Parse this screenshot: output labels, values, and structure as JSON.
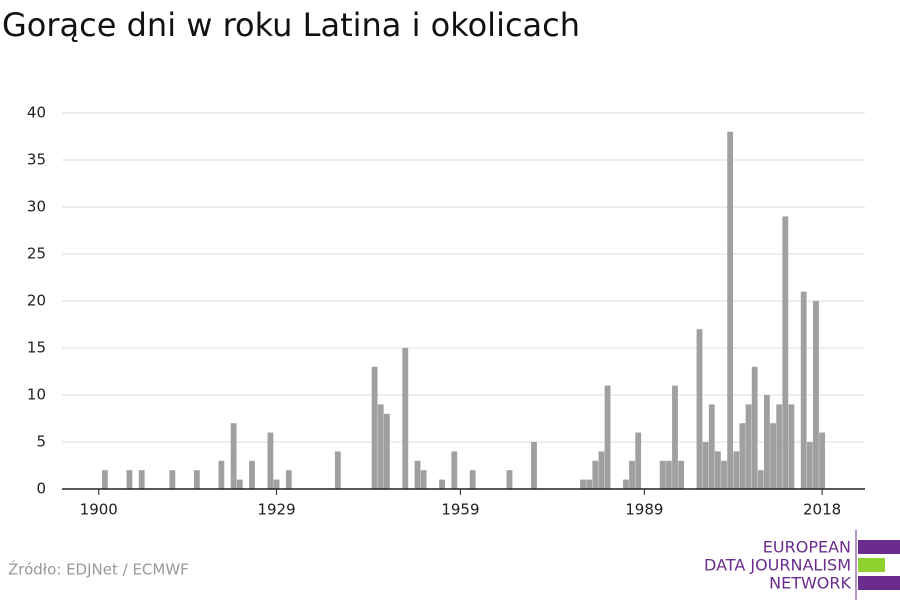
{
  "chart_data": {
    "type": "bar",
    "title": "Gorące dni w roku Latina i okolicach",
    "source": "Źródło: EDJNet / ECMWF",
    "logo": [
      "EUROPEAN",
      "DATA JOURNALISM",
      "NETWORK"
    ],
    "color": "#a0a0a0",
    "x": [
      1901,
      1905,
      1907,
      1912,
      1916,
      1920,
      1922,
      1923,
      1925,
      1928,
      1929,
      1931,
      1939,
      1945,
      1946,
      1947,
      1950,
      1952,
      1953,
      1956,
      1958,
      1961,
      1967,
      1971,
      1979,
      1980,
      1981,
      1982,
      1983,
      1986,
      1987,
      1988,
      1992,
      1993,
      1994,
      1995,
      1998,
      1999,
      2000,
      2001,
      2002,
      2003,
      2004,
      2005,
      2006,
      2007,
      2008,
      2009,
      2010,
      2011,
      2012,
      2013,
      2015,
      2016,
      2017,
      2018
    ],
    "values": [
      2,
      2,
      2,
      2,
      2,
      3,
      7,
      1,
      3,
      6,
      1,
      2,
      4,
      13,
      9,
      8,
      15,
      3,
      2,
      1,
      4,
      2,
      2,
      5,
      1,
      1,
      3,
      4,
      11,
      1,
      3,
      6,
      3,
      3,
      11,
      3,
      17,
      5,
      9,
      4,
      3,
      38,
      4,
      7,
      9,
      13,
      2,
      10,
      7,
      9,
      29,
      9,
      21,
      5,
      20,
      6
    ],
    "xlim": [
      1894,
      2025
    ],
    "xticks": [
      1900,
      1929,
      1959,
      1989,
      2018
    ],
    "ylim": [
      0,
      40
    ],
    "yticks": [
      0,
      5,
      10,
      15,
      20,
      25,
      30,
      35,
      40
    ],
    "grid": true
  }
}
